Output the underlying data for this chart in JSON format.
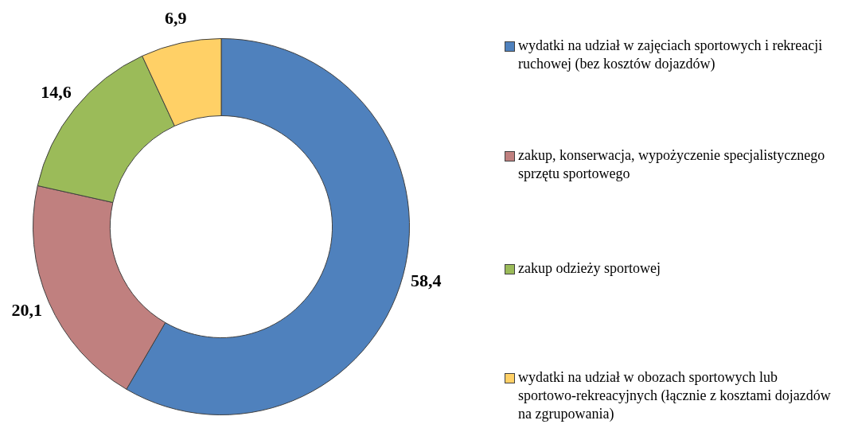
{
  "chart_data": {
    "type": "donut",
    "categories": [
      "wydatki na udział w zajęciach sportowych i rekreacji ruchowej (bez kosztów dojazdów)",
      "zakup, konserwacja, wypożyczenie specjalistycznego sprzętu sportowego",
      "zakup odzieży sportowej",
      "wydatki na udział w obozach sportowych lub sportowo-rekreacyjnych (łącznie z kosztami dojazdów na zgrupowania)"
    ],
    "values": [
      58.4,
      20.1,
      14.6,
      6.9
    ],
    "colors": [
      "#4f81bd",
      "#c0807f",
      "#9bbb59",
      "#ffd066"
    ],
    "value_labels": [
      "58,4",
      "20,1",
      "14,6",
      "6,9"
    ],
    "legend": "right"
  }
}
